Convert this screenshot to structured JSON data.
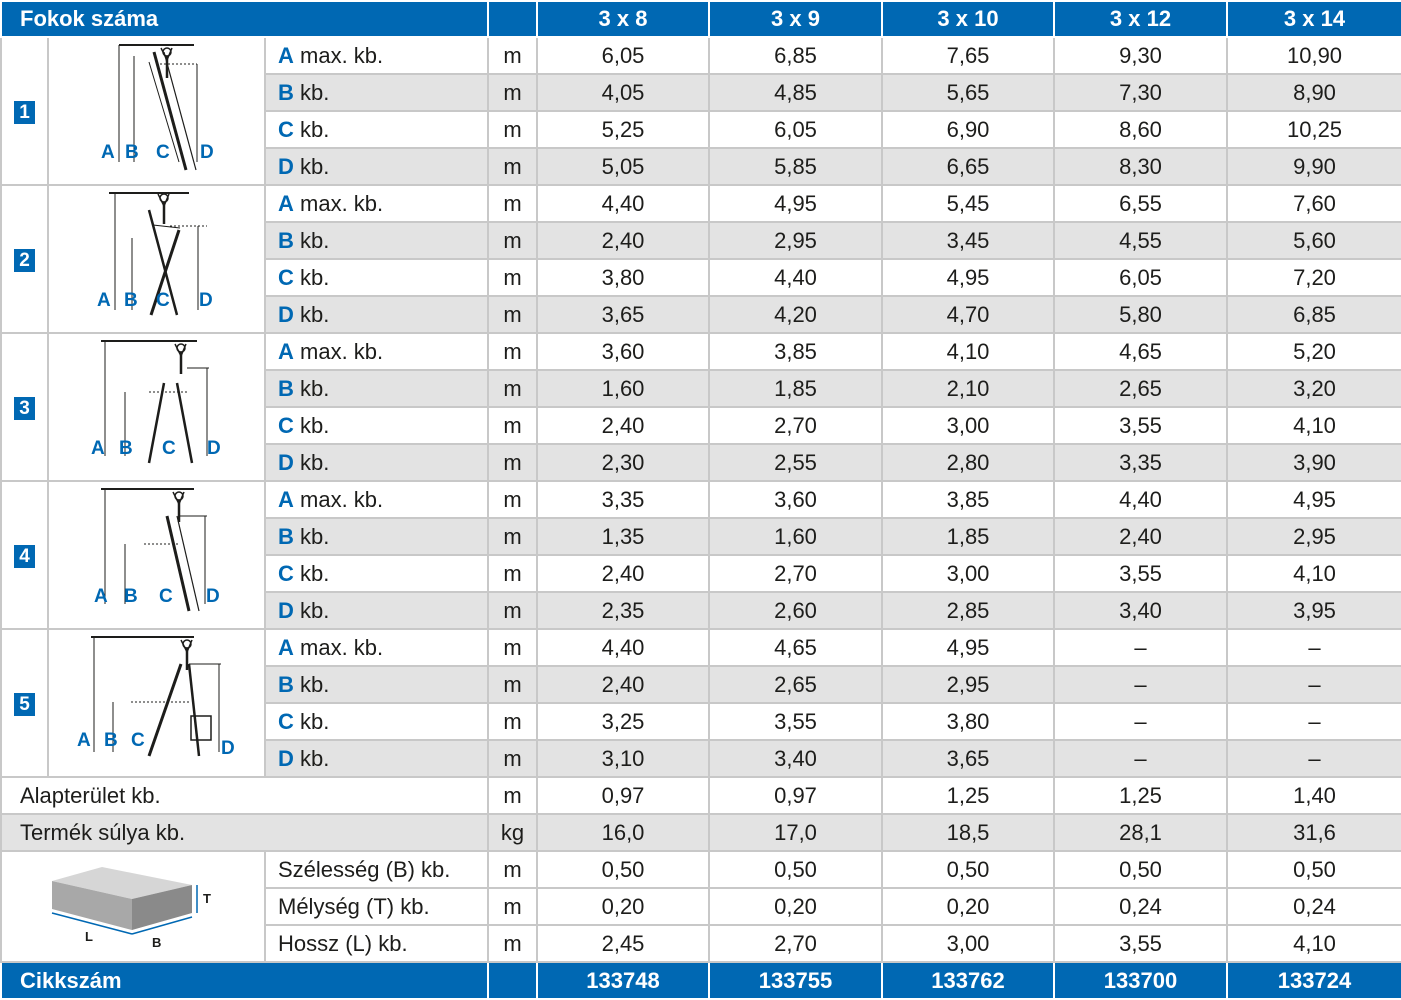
{
  "header": {
    "title": "Fokok száma",
    "columns": [
      "3 x 8",
      "3 x 9",
      "3 x 10",
      "3 x 12",
      "3 x 14"
    ]
  },
  "letters": [
    "A",
    "B",
    "C",
    "D"
  ],
  "suffixes": [
    "max. kb.",
    "kb.",
    "kb.",
    "kb."
  ],
  "unit_m": "m",
  "unit_kg": "kg",
  "positions": [
    {
      "number": "1",
      "rows": [
        [
          "6,05",
          "6,85",
          "7,65",
          "9,30",
          "10,90"
        ],
        [
          "4,05",
          "4,85",
          "5,65",
          "7,30",
          "8,90"
        ],
        [
          "5,25",
          "6,05",
          "6,90",
          "8,60",
          "10,25"
        ],
        [
          "5,05",
          "5,85",
          "6,65",
          "8,30",
          "9,90"
        ]
      ]
    },
    {
      "number": "2",
      "rows": [
        [
          "4,40",
          "4,95",
          "5,45",
          "6,55",
          "7,60"
        ],
        [
          "2,40",
          "2,95",
          "3,45",
          "4,55",
          "5,60"
        ],
        [
          "3,80",
          "4,40",
          "4,95",
          "6,05",
          "7,20"
        ],
        [
          "3,65",
          "4,20",
          "4,70",
          "5,80",
          "6,85"
        ]
      ]
    },
    {
      "number": "3",
      "rows": [
        [
          "3,60",
          "3,85",
          "4,10",
          "4,65",
          "5,20"
        ],
        [
          "1,60",
          "1,85",
          "2,10",
          "2,65",
          "3,20"
        ],
        [
          "2,40",
          "2,70",
          "3,00",
          "3,55",
          "4,10"
        ],
        [
          "2,30",
          "2,55",
          "2,80",
          "3,35",
          "3,90"
        ]
      ]
    },
    {
      "number": "4",
      "rows": [
        [
          "3,35",
          "3,60",
          "3,85",
          "4,40",
          "4,95"
        ],
        [
          "1,35",
          "1,60",
          "1,85",
          "2,40",
          "2,95"
        ],
        [
          "2,40",
          "2,70",
          "3,00",
          "3,55",
          "4,10"
        ],
        [
          "2,35",
          "2,60",
          "2,85",
          "3,40",
          "3,95"
        ]
      ]
    },
    {
      "number": "5",
      "rows": [
        [
          "4,40",
          "4,65",
          "4,95",
          "–",
          "–"
        ],
        [
          "2,40",
          "2,65",
          "2,95",
          "–",
          "–"
        ],
        [
          "3,25",
          "3,55",
          "3,80",
          "–",
          "–"
        ],
        [
          "3,10",
          "3,40",
          "3,65",
          "–",
          "–"
        ]
      ]
    }
  ],
  "footprint": {
    "label": "Alapterület kb.",
    "values": [
      "0,97",
      "0,97",
      "1,25",
      "1,25",
      "1,40"
    ]
  },
  "weight": {
    "label": "Termék súlya kb.",
    "values": [
      "16,0",
      "17,0",
      "18,5",
      "28,1",
      "31,6"
    ]
  },
  "package": {
    "box_labels": {
      "T": "T",
      "L": "L",
      "B": "B"
    },
    "rows": [
      {
        "label": "Szélesség (B) kb.",
        "values": [
          "0,50",
          "0,50",
          "0,50",
          "0,50",
          "0,50"
        ]
      },
      {
        "label": "Mélység (T) kb.",
        "values": [
          "0,20",
          "0,20",
          "0,20",
          "0,24",
          "0,24"
        ]
      },
      {
        "label": "Hossz (L) kb.",
        "values": [
          "2,45",
          "2,70",
          "3,00",
          "3,55",
          "4,10"
        ]
      }
    ]
  },
  "article": {
    "label": "Cikkszám",
    "values": [
      "133748",
      "133755",
      "133762",
      "133700",
      "133724"
    ]
  },
  "colors": {
    "accent": "#0068b3",
    "stripe": "#e3e3e3",
    "border": "#c8c8c8",
    "text": "#1d1d1b"
  },
  "icons": [
    "ladder-position-1-icon",
    "ladder-position-2-icon",
    "ladder-position-3-icon",
    "ladder-position-4-icon",
    "ladder-position-5-icon",
    "package-box-icon"
  ]
}
